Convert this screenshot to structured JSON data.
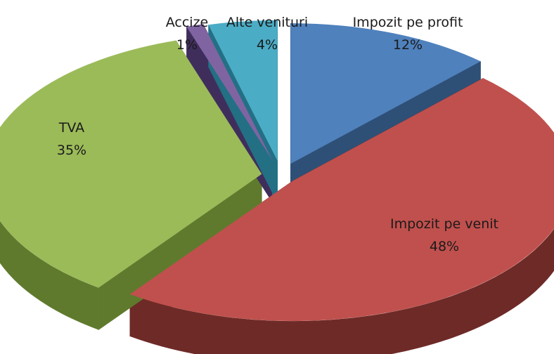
{
  "chart_data": {
    "type": "pie",
    "style": "3d-exploded",
    "categories": [
      "Impozit pe profit",
      "Impozit pe venit",
      "TVA",
      "Accize",
      "Alte venituri"
    ],
    "values": [
      12,
      48,
      35,
      1,
      4
    ],
    "value_labels": [
      "12%",
      "48%",
      "35%",
      "1%",
      "4%"
    ],
    "colors": [
      "#4F81BD",
      "#C0504D",
      "#9BBB59",
      "#8064A2",
      "#4BACC6"
    ],
    "side_colors": [
      "#2E5077",
      "#6E2A27",
      "#5F7A2D",
      "#3F2E5C",
      "#237085"
    ],
    "title": "",
    "legend": "none"
  }
}
